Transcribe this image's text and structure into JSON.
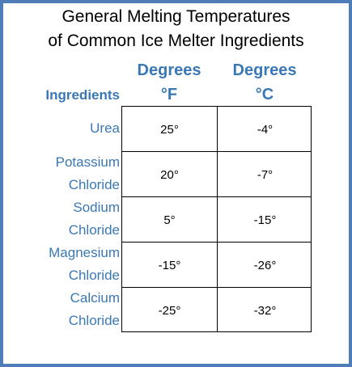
{
  "title": {
    "line1": "General Melting Temperatures",
    "line2": "of Common Ice Melter Ingredients"
  },
  "headers": {
    "ingredients": "Ingredients",
    "fahrenheit": {
      "line1": "Degrees",
      "line2": "°F"
    },
    "celsius": {
      "line1": "Degrees",
      "line2": "°C"
    }
  },
  "rows": [
    {
      "name_lines": [
        "Urea"
      ],
      "f": "25°",
      "c": "-4°"
    },
    {
      "name_lines": [
        "Potassium",
        "Chloride"
      ],
      "f": "20°",
      "c": "-7°"
    },
    {
      "name_lines": [
        "Sodium",
        "Chloride"
      ],
      "f": "5°",
      "c": "-15°"
    },
    {
      "name_lines": [
        "Magnesium",
        "Chloride"
      ],
      "f": "-15°",
      "c": "-26°"
    },
    {
      "name_lines": [
        "Calcium",
        "Chloride"
      ],
      "f": "-25°",
      "c": "-32°"
    }
  ],
  "colors": {
    "border": "#4f7db8",
    "header_text": "#3a78b5",
    "body_text": "#000000"
  }
}
